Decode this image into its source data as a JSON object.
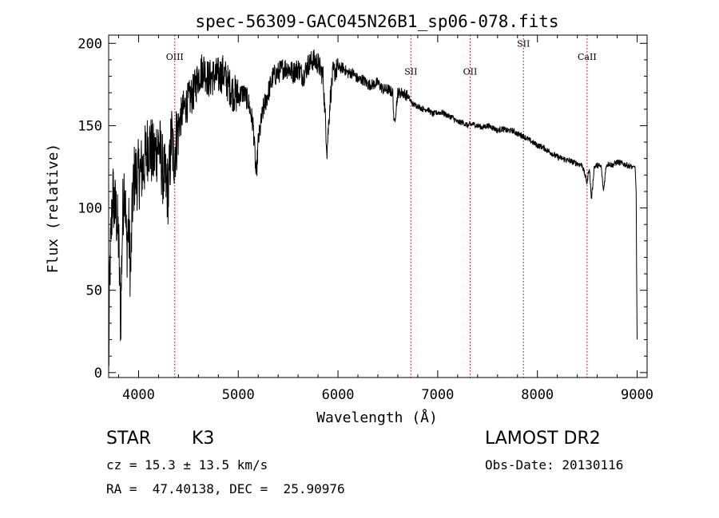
{
  "chart_data": {
    "type": "line",
    "title": "spec-56309-GAC045N26B1_sp06-078.fits",
    "xlabel": "Wavelength (Å)",
    "ylabel": "Flux (relative)",
    "xlim": [
      3700,
      9100
    ],
    "ylim": [
      -3,
      205
    ],
    "xticks": [
      4000,
      5000,
      6000,
      7000,
      8000,
      9000
    ],
    "yticks": [
      0,
      50,
      100,
      150,
      200
    ],
    "series": [
      {
        "name": "flux",
        "color": "#000000",
        "anchors": [
          [
            3700,
            5
          ],
          [
            3705,
            20
          ],
          [
            3710,
            60
          ],
          [
            3720,
            75
          ],
          [
            3740,
            110
          ],
          [
            3760,
            100
          ],
          [
            3780,
            95
          ],
          [
            3800,
            80
          ],
          [
            3820,
            30
          ],
          [
            3840,
            95
          ],
          [
            3860,
            120
          ],
          [
            3880,
            75
          ],
          [
            3900,
            90
          ],
          [
            3920,
            60
          ],
          [
            3940,
            105
          ],
          [
            3960,
            120
          ],
          [
            4000,
            120
          ],
          [
            4050,
            125
          ],
          [
            4100,
            140
          ],
          [
            4150,
            130
          ],
          [
            4200,
            140
          ],
          [
            4250,
            120
          ],
          [
            4300,
            110
          ],
          [
            4330,
            145
          ],
          [
            4350,
            130
          ],
          [
            4400,
            150
          ],
          [
            4450,
            160
          ],
          [
            4500,
            165
          ],
          [
            4550,
            170
          ],
          [
            4600,
            180
          ],
          [
            4650,
            185
          ],
          [
            4700,
            178
          ],
          [
            4750,
            180
          ],
          [
            4800,
            180
          ],
          [
            4850,
            182
          ],
          [
            4900,
            175
          ],
          [
            4950,
            170
          ],
          [
            5000,
            168
          ],
          [
            5050,
            170
          ],
          [
            5100,
            165
          ],
          [
            5150,
            150
          ],
          [
            5180,
            118
          ],
          [
            5200,
            140
          ],
          [
            5250,
            160
          ],
          [
            5300,
            170
          ],
          [
            5350,
            180
          ],
          [
            5400,
            182
          ],
          [
            5450,
            185
          ],
          [
            5500,
            185
          ],
          [
            5550,
            182
          ],
          [
            5600,
            185
          ],
          [
            5650,
            180
          ],
          [
            5700,
            187
          ],
          [
            5750,
            190
          ],
          [
            5800,
            188
          ],
          [
            5850,
            180
          ],
          [
            5890,
            135
          ],
          [
            5920,
            165
          ],
          [
            5950,
            182
          ],
          [
            6000,
            185
          ],
          [
            6050,
            185
          ],
          [
            6100,
            182
          ],
          [
            6150,
            182
          ],
          [
            6200,
            178
          ],
          [
            6250,
            178
          ],
          [
            6300,
            175
          ],
          [
            6350,
            175
          ],
          [
            6400,
            176
          ],
          [
            6450,
            172
          ],
          [
            6500,
            172
          ],
          [
            6550,
            170
          ],
          [
            6563,
            150
          ],
          [
            6600,
            170
          ],
          [
            6650,
            170
          ],
          [
            6700,
            168
          ],
          [
            6750,
            163
          ],
          [
            6800,
            162
          ],
          [
            6850,
            160
          ],
          [
            6900,
            160
          ],
          [
            6950,
            157
          ],
          [
            7000,
            158
          ],
          [
            7050,
            158
          ],
          [
            7100,
            156
          ],
          [
            7150,
            155
          ],
          [
            7200,
            152
          ],
          [
            7250,
            152
          ],
          [
            7300,
            150
          ],
          [
            7350,
            151
          ],
          [
            7400,
            150
          ],
          [
            7450,
            149
          ],
          [
            7500,
            150
          ],
          [
            7550,
            149
          ],
          [
            7600,
            147
          ],
          [
            7650,
            148
          ],
          [
            7700,
            147
          ],
          [
            7750,
            147
          ],
          [
            7800,
            145
          ],
          [
            7850,
            144
          ],
          [
            7900,
            142
          ],
          [
            7950,
            140
          ],
          [
            8000,
            138
          ],
          [
            8050,
            137
          ],
          [
            8100,
            135
          ],
          [
            8150,
            133
          ],
          [
            8200,
            131
          ],
          [
            8250,
            130
          ],
          [
            8300,
            129
          ],
          [
            8350,
            128
          ],
          [
            8400,
            127
          ],
          [
            8450,
            126
          ],
          [
            8498,
            115
          ],
          [
            8520,
            125
          ],
          [
            8542,
            105
          ],
          [
            8570,
            125
          ],
          [
            8600,
            126
          ],
          [
            8640,
            125
          ],
          [
            8662,
            110
          ],
          [
            8690,
            126
          ],
          [
            8720,
            127
          ],
          [
            8750,
            126
          ],
          [
            8800,
            128
          ],
          [
            8850,
            127
          ],
          [
            8900,
            126
          ],
          [
            8950,
            125
          ],
          [
            8980,
            125
          ],
          [
            8990,
            110
          ],
          [
            8995,
            60
          ],
          [
            9000,
            20
          ]
        ]
      }
    ],
    "annotations": [
      {
        "label": "OIII",
        "x": 4363,
        "label_y": 190
      },
      {
        "label": "SII",
        "x": 6731,
        "label_y": 181
      },
      {
        "label": "OII",
        "x": 7325,
        "label_y": 181
      },
      {
        "label": "SII",
        "x": 7860,
        "label_y": 198
      },
      {
        "label": "CaII",
        "x": 8498,
        "label_y": 190
      }
    ],
    "grid": false,
    "legend": "none"
  },
  "info": {
    "object_class": "STAR",
    "subclass": "K3",
    "cz_line": "cz = 15.3 ± 13.5 km/s",
    "radec_line": "RA =  47.40138, DEC =  25.90976",
    "survey": "LAMOST DR2",
    "obs_date": "Obs-Date: 20130116"
  },
  "colors": {
    "axis": "#000000",
    "line": "#000000",
    "marker": "#8b0000"
  }
}
